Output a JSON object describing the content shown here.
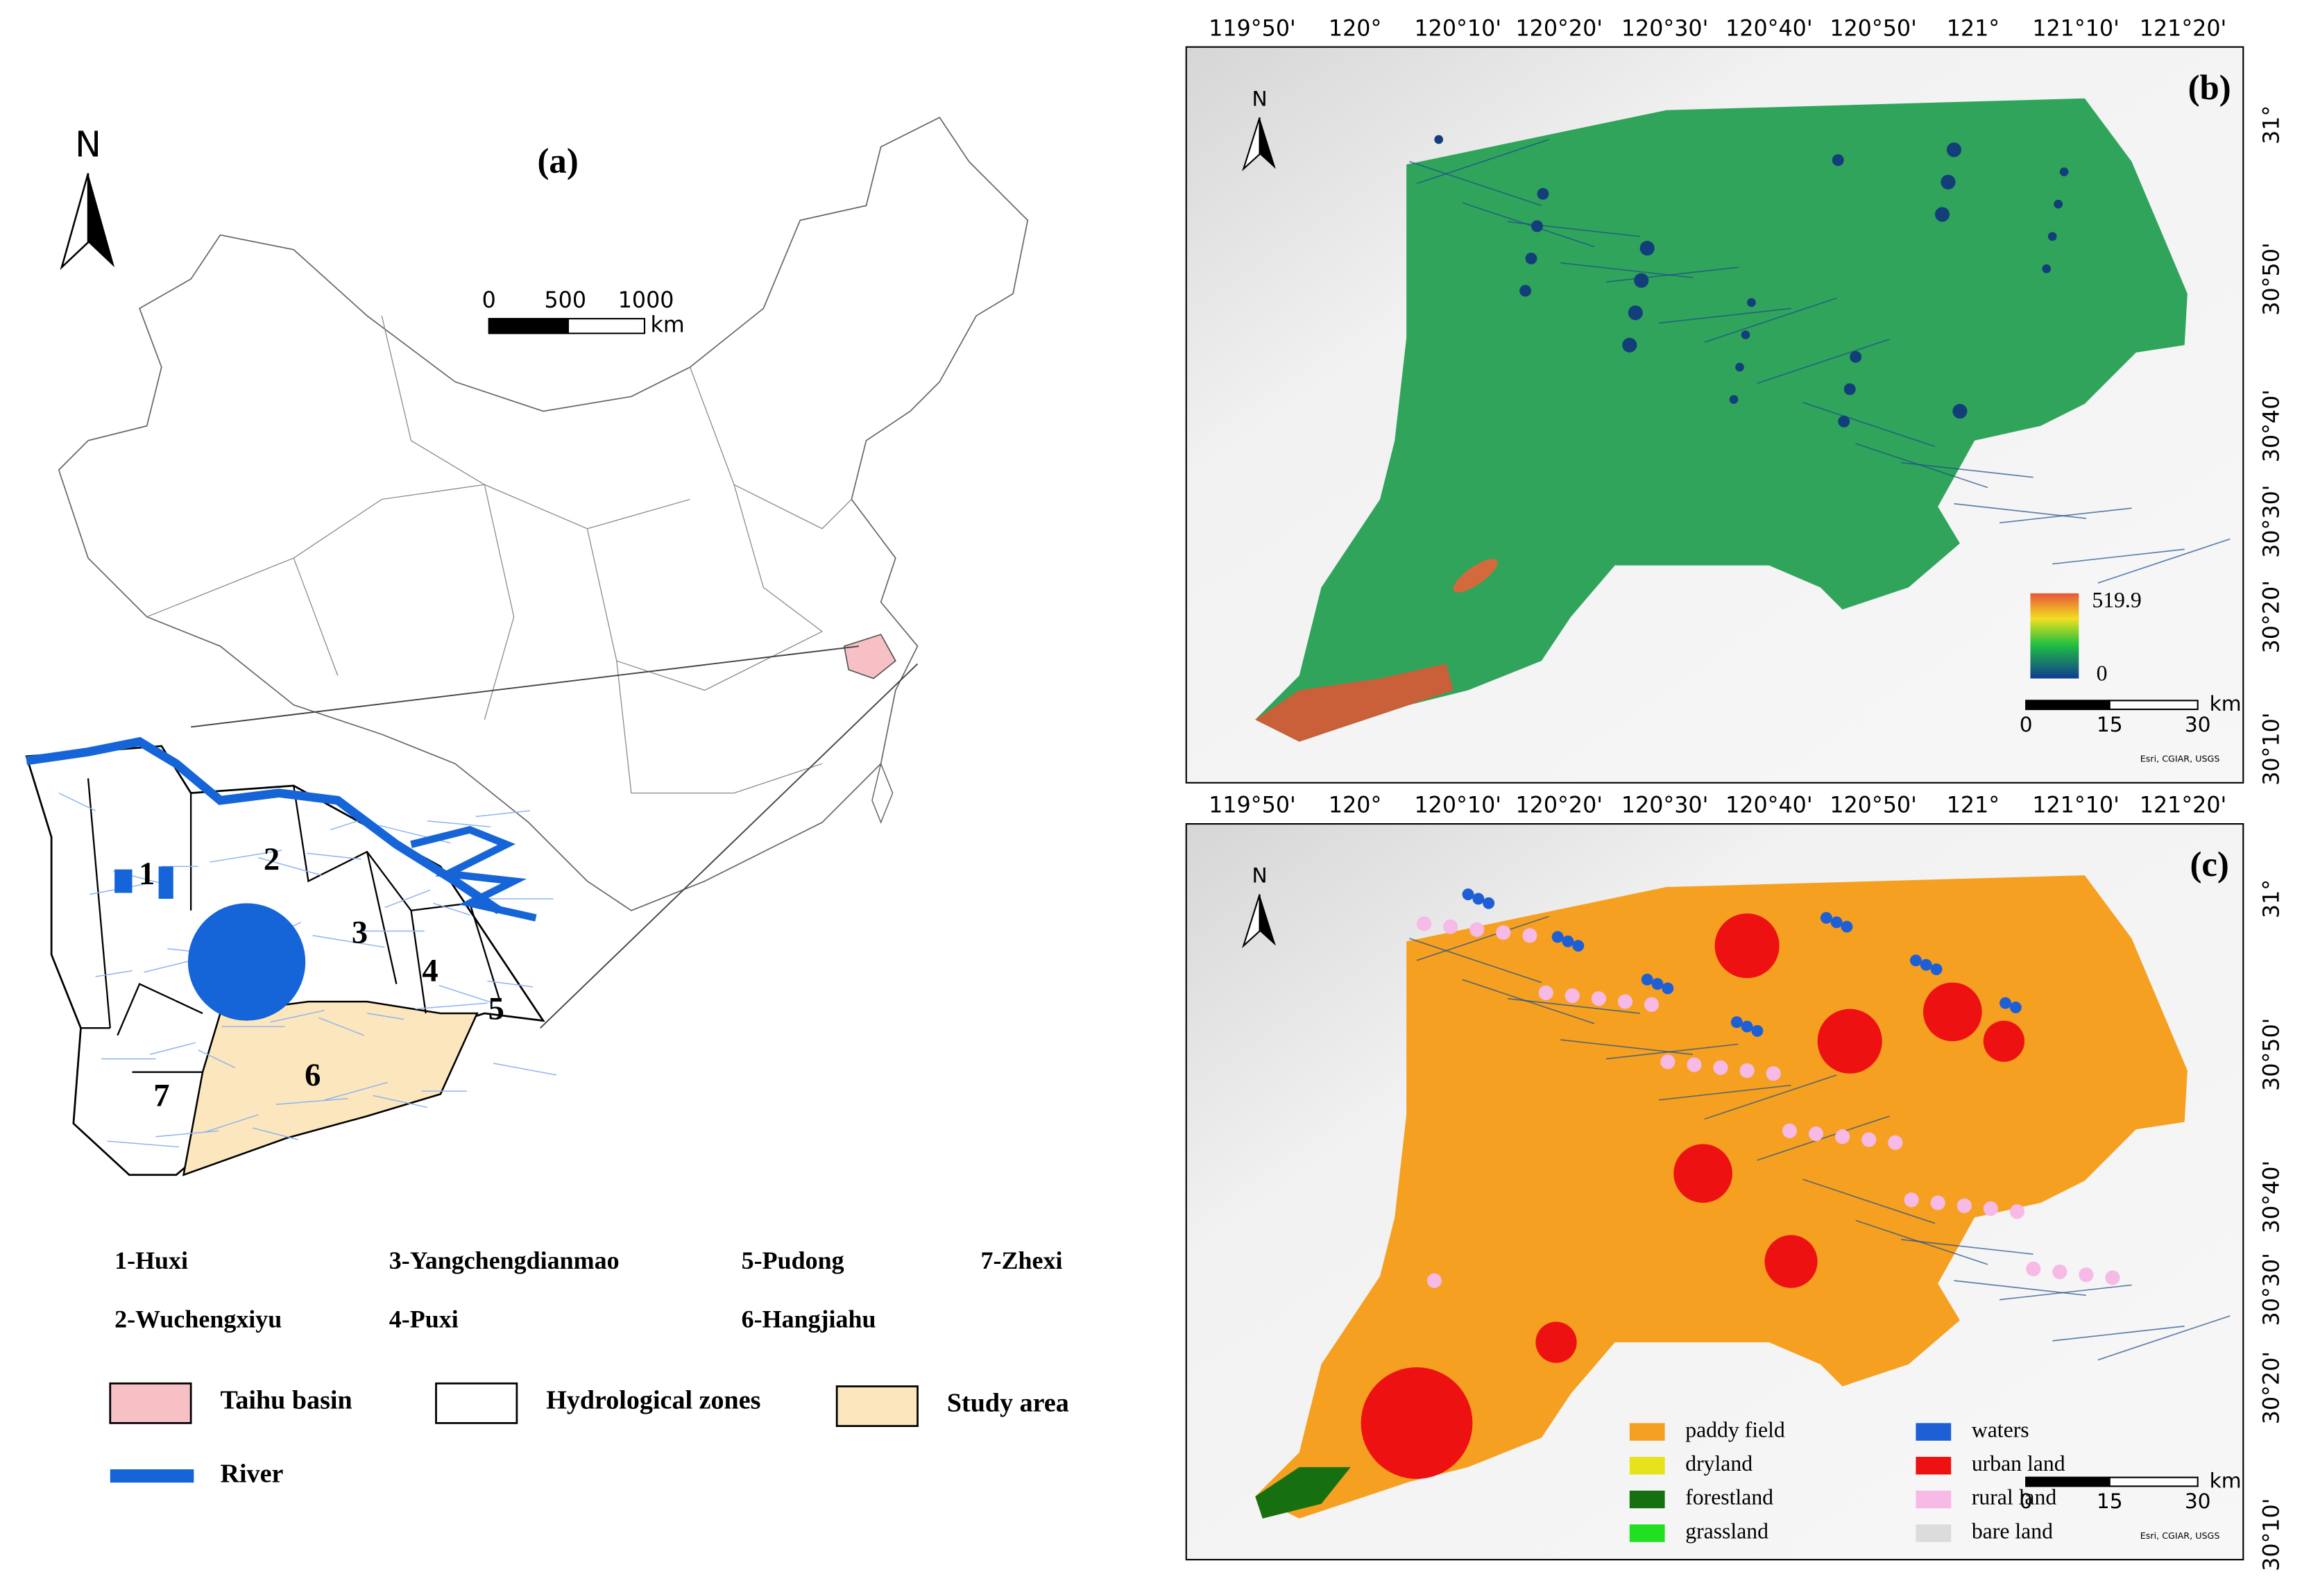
{
  "panel_a": {
    "label": "(a)",
    "north": "N",
    "scale": [
      "0",
      "500",
      "1000"
    ],
    "scale_unit": "km",
    "zone_numbers": [
      "1",
      "2",
      "3",
      "4",
      "5",
      "6",
      "7"
    ],
    "zone_names": [
      "1-Huxi",
      "2-Wuchengxiyu",
      "3-Yangchengdianmao",
      "4-Puxi",
      "5-Pudong",
      "6-Hangjiahu",
      "7-Zhexi"
    ],
    "legend": [
      {
        "label": "Taihu basin",
        "color": "#f6c0c4"
      },
      {
        "label": "Hydrological zones",
        "color": "#ffffff"
      },
      {
        "label": "Study area",
        "color": "#fbe6bd"
      },
      {
        "label": "River",
        "color": "#1565d8"
      }
    ]
  },
  "graticule": {
    "longitudes": [
      "119°50'",
      "120°",
      "120°10'",
      "120°20'",
      "120°30'",
      "120°40'",
      "120°50'",
      "121°",
      "121°10'",
      "121°20'"
    ],
    "latitudes": [
      "31°",
      "30°50'",
      "30°40'",
      "30°30'",
      "30°20'",
      "30°10'"
    ]
  },
  "panel_b": {
    "label": "(b)",
    "north": "N",
    "legend_max": "519.9",
    "legend_min": "0",
    "scale": [
      "0",
      "15",
      "30"
    ],
    "scale_unit": "km",
    "attribution": "Esri, CGIAR, USGS"
  },
  "panel_c": {
    "label": "(c)",
    "north": "N",
    "scale": [
      "0",
      "15",
      "30"
    ],
    "scale_unit": "km",
    "attribution": "Esri, CGIAR, USGS",
    "legend": [
      {
        "label": "paddy field",
        "color": "#f5a020"
      },
      {
        "label": "dryland",
        "color": "#e6e21c"
      },
      {
        "label": "forestland",
        "color": "#17700f"
      },
      {
        "label": "grassland",
        "color": "#21e021"
      },
      {
        "label": "waters",
        "color": "#1f5fd6"
      },
      {
        "label": "urban land",
        "color": "#ee1111"
      },
      {
        "label": "rural land",
        "color": "#f7b9e6"
      },
      {
        "label": "bare land",
        "color": "#dcdcdc"
      }
    ]
  }
}
